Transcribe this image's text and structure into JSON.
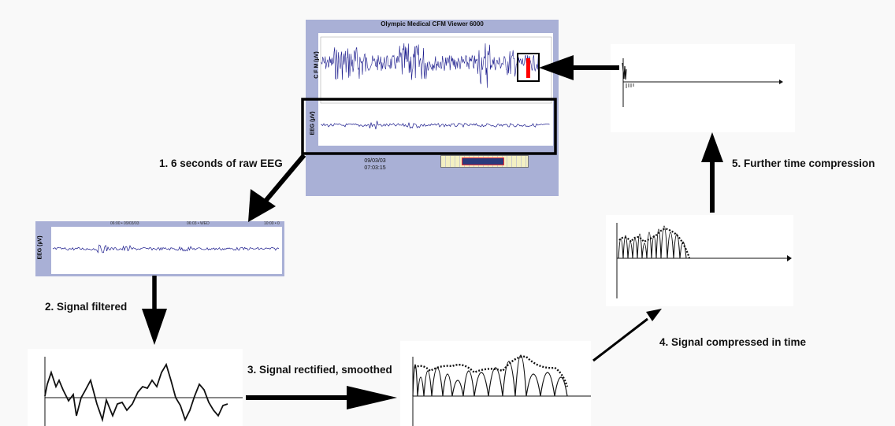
{
  "viewer": {
    "title": "Olympic Medical CFM Viewer 6000",
    "cfm_axis_label": "C F M (µV)",
    "eeg_axis_label": "EEG (µV)",
    "timestamp_date": "09/03/03",
    "timestamp_time": "07:03:15"
  },
  "raw_eeg_panel": {
    "axis_label": "EEG (µV)",
    "header_left": "06:00 • 09/03/03",
    "header_mid": "06:03 • WED",
    "header_right": "10:00 • 0"
  },
  "steps": {
    "step1": "1. 6 seconds of raw EEG",
    "step2": "2. Signal filtered",
    "step3": "3. Signal rectified, smoothed",
    "step4": "4. Signal compressed in time",
    "step5": "5. Further time compression"
  },
  "colors": {
    "viewer_bg": "#a9b0d6",
    "trace": "#1a1a8c",
    "highlight": "#ff0000"
  }
}
